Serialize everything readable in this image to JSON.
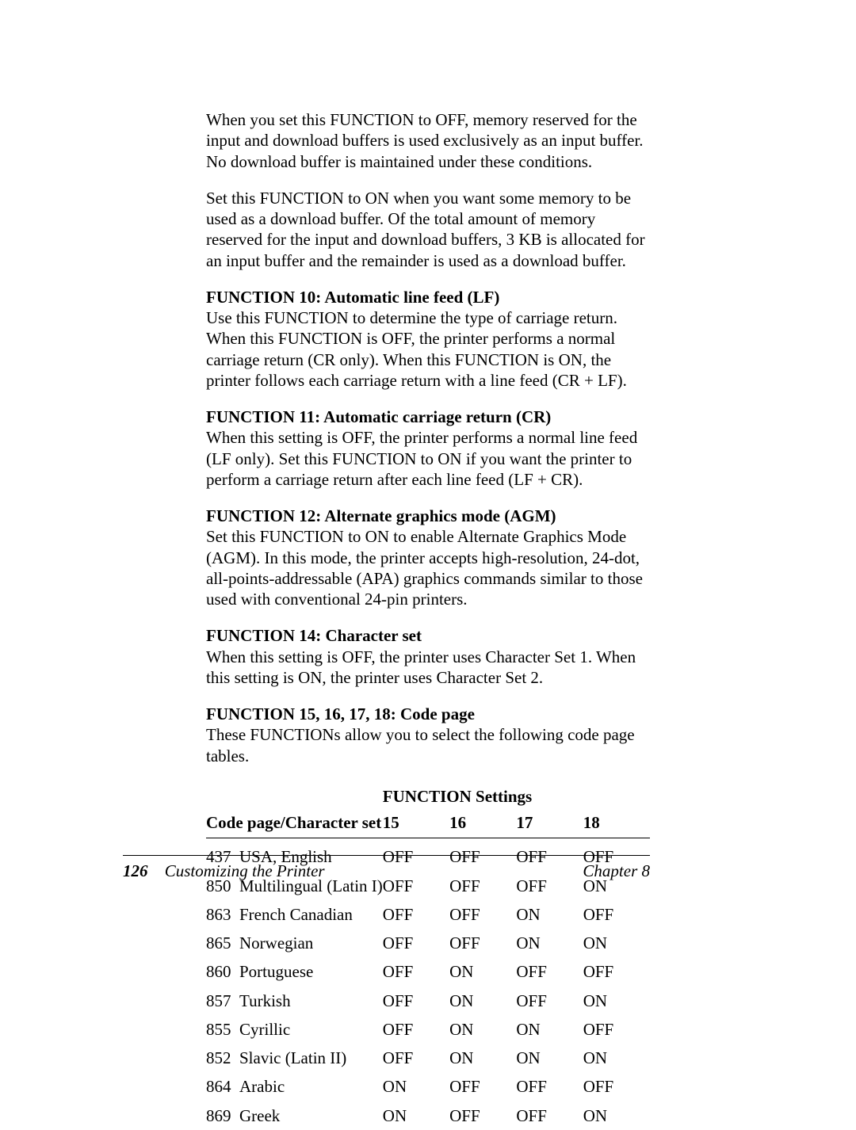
{
  "intro_paragraphs": [
    "When you set this FUNCTION to OFF, memory reserved for the input and download buffers is used exclusively as an input buffer. No download buffer is maintained under these conditions.",
    "Set this FUNCTION to ON when you want some memory to be used as a download buffer. Of the total amount of memory reserved for the input and download buffers, 3 KB is allocated for an input buffer and the remainder is used as a download buffer."
  ],
  "sections": [
    {
      "heading": "FUNCTION 10: Automatic line feed (LF)",
      "body": "Use this FUNCTION to determine the type of carriage return. When this FUNCTION is OFF, the printer performs a normal carriage return (CR only). When this FUNCTION is ON, the printer follows each carriage return with a line feed (CR + LF)."
    },
    {
      "heading": "FUNCTION 11: Automatic carriage return (CR)",
      "body": "When this setting is OFF, the printer performs a normal line feed (LF only). Set this FUNCTION to ON if you want the printer to perform a carriage return after each line feed (LF + CR)."
    },
    {
      "heading": "FUNCTION 12: Alternate graphics mode (AGM)",
      "body": "Set this FUNCTION to ON to enable Alternate Graphics Mode (AGM). In this mode, the printer accepts high-resolution, 24-dot, all-points-addressable (APA) graphics commands similar to those used with conventional 24-pin printers."
    },
    {
      "heading": "FUNCTION 14: Character set",
      "body": "When this setting is OFF, the printer uses Character Set 1. When this setting is ON, the printer uses Character Set 2."
    },
    {
      "heading": "FUNCTION 15, 16, 17, 18: Code page",
      "body": "These FUNCTIONs allow you to select the following code page tables."
    }
  ],
  "table": {
    "super_header": "FUNCTION Settings",
    "row_header": "Code page/Character set",
    "cols": [
      "15",
      "16",
      "17",
      "18"
    ],
    "rows": [
      {
        "code": "437",
        "name": "USA, English",
        "v": [
          "OFF",
          "OFF",
          "OFF",
          "OFF"
        ]
      },
      {
        "code": "850",
        "name": "Multilingual (Latin I)",
        "v": [
          "OFF",
          "OFF",
          "OFF",
          "ON"
        ]
      },
      {
        "code": "863",
        "name": "French Canadian",
        "v": [
          "OFF",
          "OFF",
          "ON",
          "OFF"
        ]
      },
      {
        "code": "865",
        "name": "Norwegian",
        "v": [
          "OFF",
          "OFF",
          "ON",
          "ON"
        ]
      },
      {
        "code": "860",
        "name": "Portuguese",
        "v": [
          "OFF",
          "ON",
          "OFF",
          "OFF"
        ]
      },
      {
        "code": "857",
        "name": "Turkish",
        "v": [
          "OFF",
          "ON",
          "OFF",
          "ON"
        ]
      },
      {
        "code": "855",
        "name": "Cyrillic",
        "v": [
          "OFF",
          "ON",
          "ON",
          "OFF"
        ]
      },
      {
        "code": "852",
        "name": "Slavic (Latin II)",
        "v": [
          "OFF",
          "ON",
          "ON",
          "ON"
        ]
      },
      {
        "code": "864",
        "name": "Arabic",
        "v": [
          "ON",
          "OFF",
          "OFF",
          "OFF"
        ]
      },
      {
        "code": "869",
        "name": "Greek",
        "v": [
          "ON",
          "OFF",
          "OFF",
          "ON"
        ]
      }
    ]
  },
  "footer": {
    "page_number": "126",
    "title": "Customizing the Printer",
    "chapter": "Chapter 8"
  }
}
